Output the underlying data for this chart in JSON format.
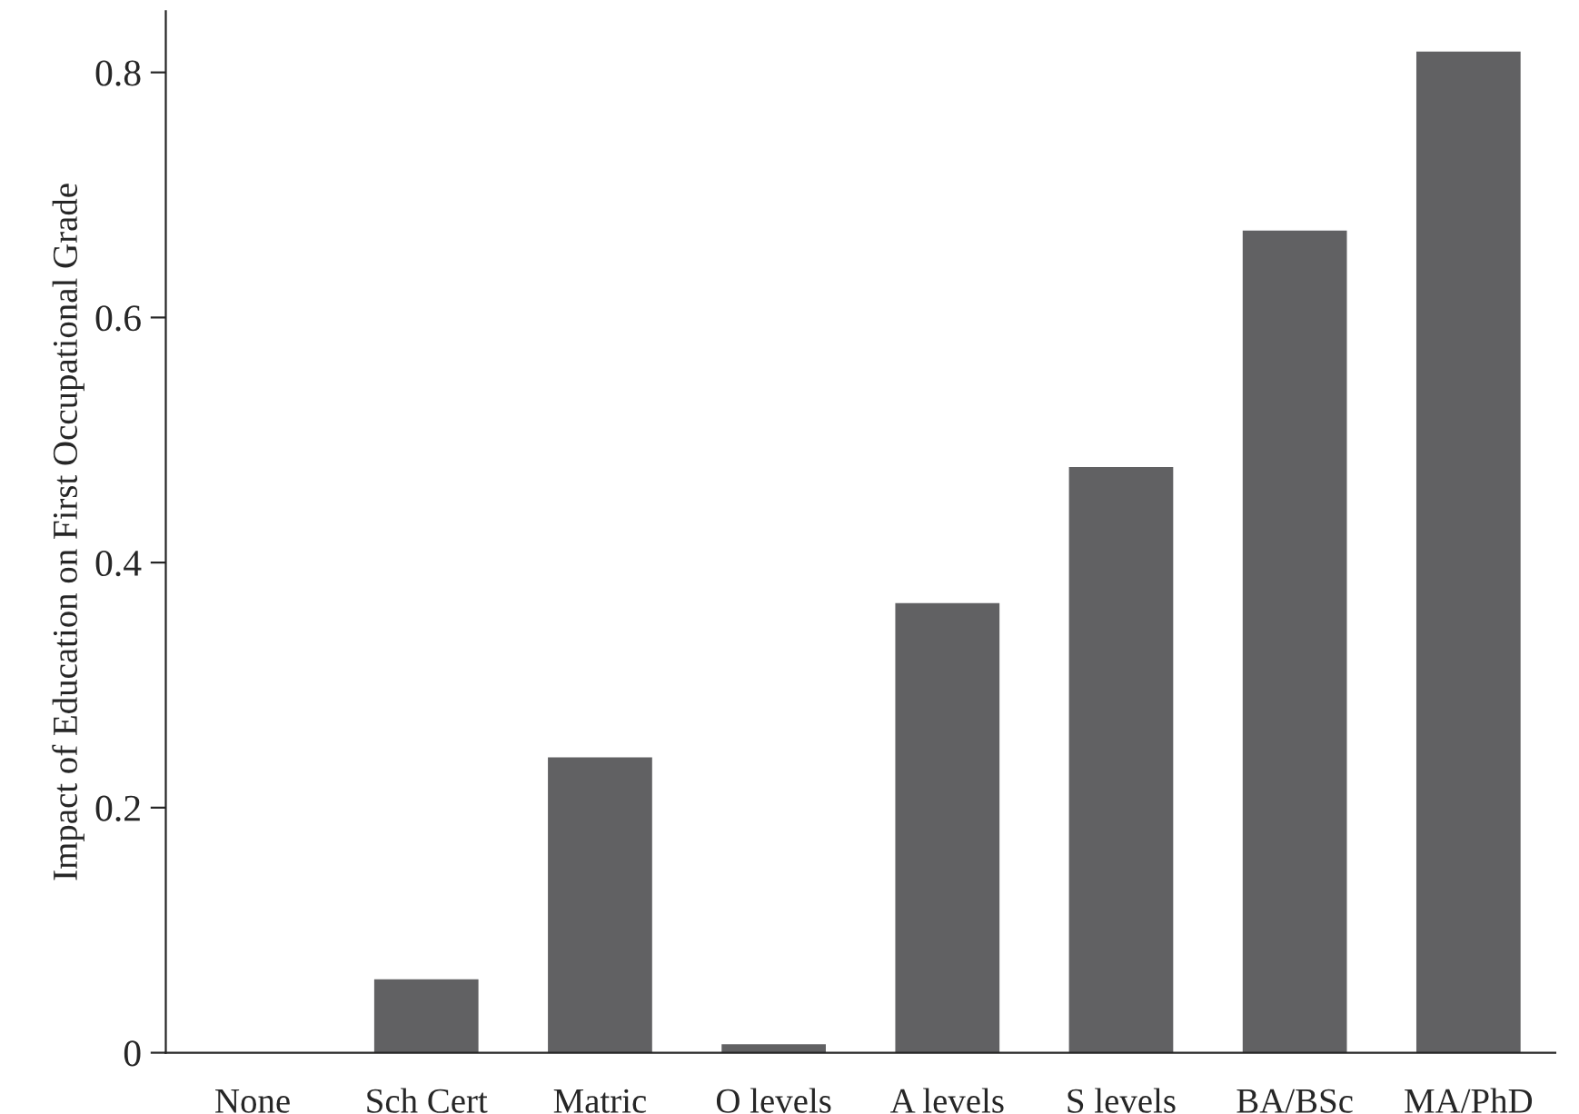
{
  "chart_data": {
    "type": "bar",
    "ylabel": "Impact of Education on First Occupational Grade",
    "categories": [
      "None",
      "Sch Cert",
      "Matric",
      "O levels",
      "A levels",
      "S levels",
      "BA/BSc",
      "MA/PhD"
    ],
    "values": [
      0,
      0.06,
      0.241,
      0.007,
      0.367,
      0.478,
      0.671,
      0.817
    ],
    "color": "#616163",
    "ylim": [
      0,
      0.85
    ],
    "yticks": [
      0,
      0.2,
      0.4,
      0.6,
      0.8
    ],
    "grid": false
  }
}
